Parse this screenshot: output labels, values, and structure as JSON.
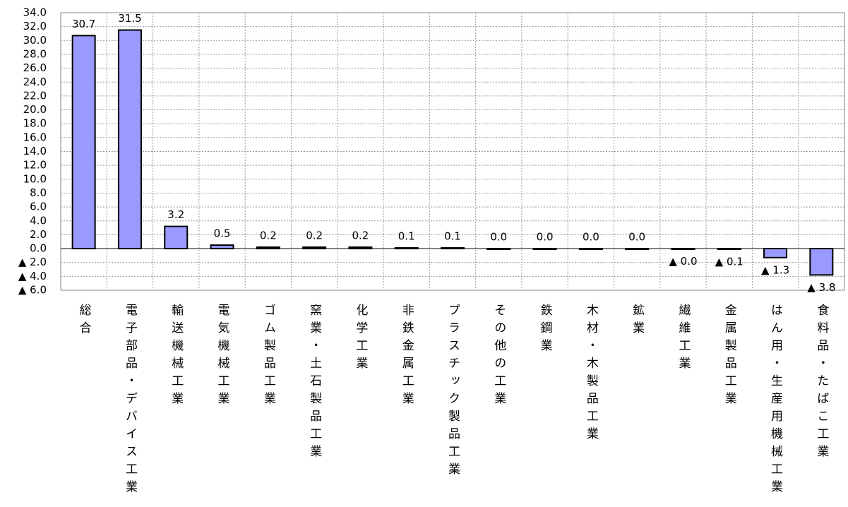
{
  "chart_data": {
    "type": "bar",
    "categories": [
      "総合",
      "電子部品・デバイス工業",
      "輸送機械工業",
      "電気機械工業",
      "ゴム製品工業",
      "窯業・土石製品工業",
      "化学工業",
      "非鉄金属工業",
      "プラスチック製品工業",
      "その他の工業",
      "鉄鋼業",
      "木材・木製品工業",
      "鉱業",
      "繊維工業",
      "金属製品工業",
      "はん用・生産用機械工業",
      "食料品・たばこ工業"
    ],
    "values": [
      30.7,
      31.5,
      3.2,
      0.5,
      0.2,
      0.2,
      0.2,
      0.1,
      0.1,
      0.0,
      0.0,
      0.0,
      0.0,
      -0.04,
      -0.1,
      -1.3,
      -3.8
    ],
    "value_labels": [
      "30.7",
      "31.5",
      "3.2",
      "0.5",
      "0.2",
      "0.2",
      "0.2",
      "0.1",
      "0.1",
      "0.0",
      "0.0",
      "0.0",
      "0.0",
      "▲ 0.0",
      "▲ 0.1",
      "▲ 1.3",
      "▲ 3.8"
    ],
    "color": "#9999ff",
    "ylim": [
      -6,
      34
    ],
    "yticks": [
      {
        "value": -6,
        "label": "▲ 6.0"
      },
      {
        "value": -4,
        "label": "▲ 4.0"
      },
      {
        "value": -2,
        "label": "▲ 2.0"
      },
      {
        "value": 0,
        "label": "0.0"
      },
      {
        "value": 2,
        "label": "2.0"
      },
      {
        "value": 4,
        "label": "4.0"
      },
      {
        "value": 6,
        "label": "6.0"
      },
      {
        "value": 8,
        "label": "8.0"
      },
      {
        "value": 10,
        "label": "10.0"
      },
      {
        "value": 12,
        "label": "12.0"
      },
      {
        "value": 14,
        "label": "14.0"
      },
      {
        "value": 16,
        "label": "16.0"
      },
      {
        "value": 18,
        "label": "18.0"
      },
      {
        "value": 20,
        "label": "20.0"
      },
      {
        "value": 22,
        "label": "22.0"
      },
      {
        "value": 24,
        "label": "24.0"
      },
      {
        "value": 26,
        "label": "26.0"
      },
      {
        "value": 28,
        "label": "28.0"
      },
      {
        "value": 30,
        "label": "30.0"
      },
      {
        "value": 32,
        "label": "32.0"
      },
      {
        "value": 34,
        "label": "34.0"
      }
    ],
    "grid": true
  }
}
